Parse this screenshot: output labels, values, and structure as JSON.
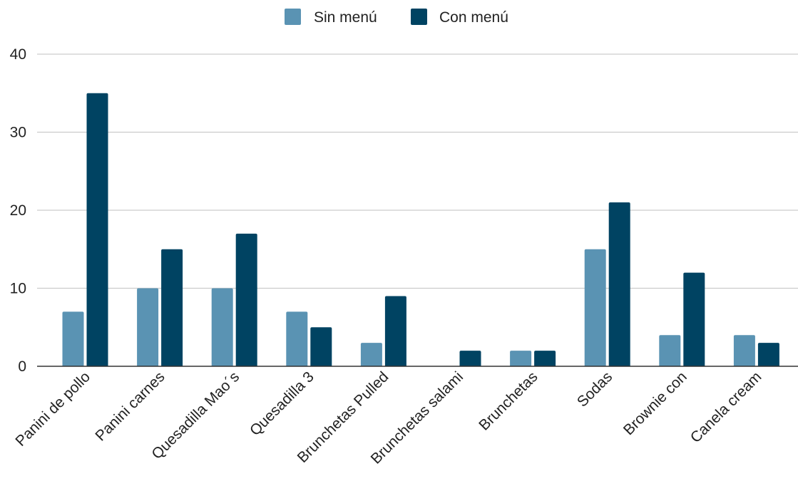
{
  "chart_data": {
    "type": "bar",
    "categories": [
      "Panini de pollo",
      "Panini carnes",
      "Quesadilla Mao´s",
      "Quesadilla 3",
      "Brunchetas Pulled",
      "Brunchetas salami",
      "Brunchetas",
      "Sodas",
      "Brownie con",
      "Canela cream"
    ],
    "series": [
      {
        "name": "Sin menú",
        "color": "#5a93b3",
        "values": [
          7,
          10,
          10,
          7,
          3,
          0,
          2,
          15,
          4,
          4
        ]
      },
      {
        "name": "Con menú",
        "color": "#004362",
        "values": [
          35,
          15,
          17,
          5,
          9,
          2,
          2,
          21,
          12,
          3
        ]
      }
    ],
    "title": "",
    "xlabel": "",
    "ylabel": "",
    "ylim": [
      0,
      40
    ],
    "yticks": [
      0,
      10,
      20,
      30,
      40
    ],
    "grid": true,
    "legend_position": "top-center"
  }
}
